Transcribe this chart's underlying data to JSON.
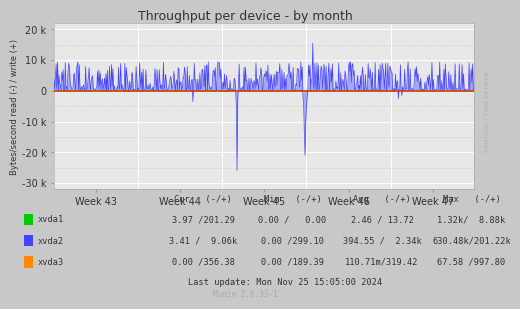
{
  "title": "Throughput per device - by month",
  "ylabel": "Bytes/second read (-) / write (+)",
  "xlabel_ticks": [
    "Week 43",
    "Week 44",
    "Week 45",
    "Week 46",
    "Week 47"
  ],
  "ylim": [
    -32000,
    22000
  ],
  "yticks": [
    -30000,
    -20000,
    -10000,
    0,
    10000,
    20000
  ],
  "ytick_labels": [
    "-30 k",
    "-20 k",
    "-10 k",
    "0",
    "10 k",
    "20 k"
  ],
  "bg_color": "#c8c8c8",
  "plot_bg_color": "#e8e8e8",
  "grid_color_white": "#ffffff",
  "grid_color_pink": "#e8a0a0",
  "legend_entries": [
    {
      "label": "xvda1",
      "color": "#00cc00"
    },
    {
      "label": "xvda2",
      "color": "#4444ff"
    },
    {
      "label": "xvda3",
      "color": "#ff8800"
    }
  ],
  "col_headers": [
    "Cur   (-/+)",
    "Min   (-/+)",
    "Avg   (-/+)",
    "Max   (-/+)"
  ],
  "legend_stats": [
    {
      "cur": "3.97 /201.29",
      "min": "0.00 /   0.00",
      "avg": "2.46 / 13.72",
      "max": "1.32k/  8.88k"
    },
    {
      "cur": "3.41 /  9.06k",
      "min": "0.00 /299.10",
      "avg": "394.55 /  2.34k",
      "max": "630.48k/201.22k"
    },
    {
      "cur": "0.00 /356.38",
      "min": "0.00 /189.39",
      "avg": "110.71m/319.42",
      "max": "67.58 /997.80"
    }
  ],
  "munin_text": "Munin 2.0.33-1",
  "rrdtool_text": "RRDTOOL / TOBI OETIKER",
  "last_update": "Last update: Mon Nov 25 15:05:00 2024",
  "seed": 42,
  "n_points": 600
}
